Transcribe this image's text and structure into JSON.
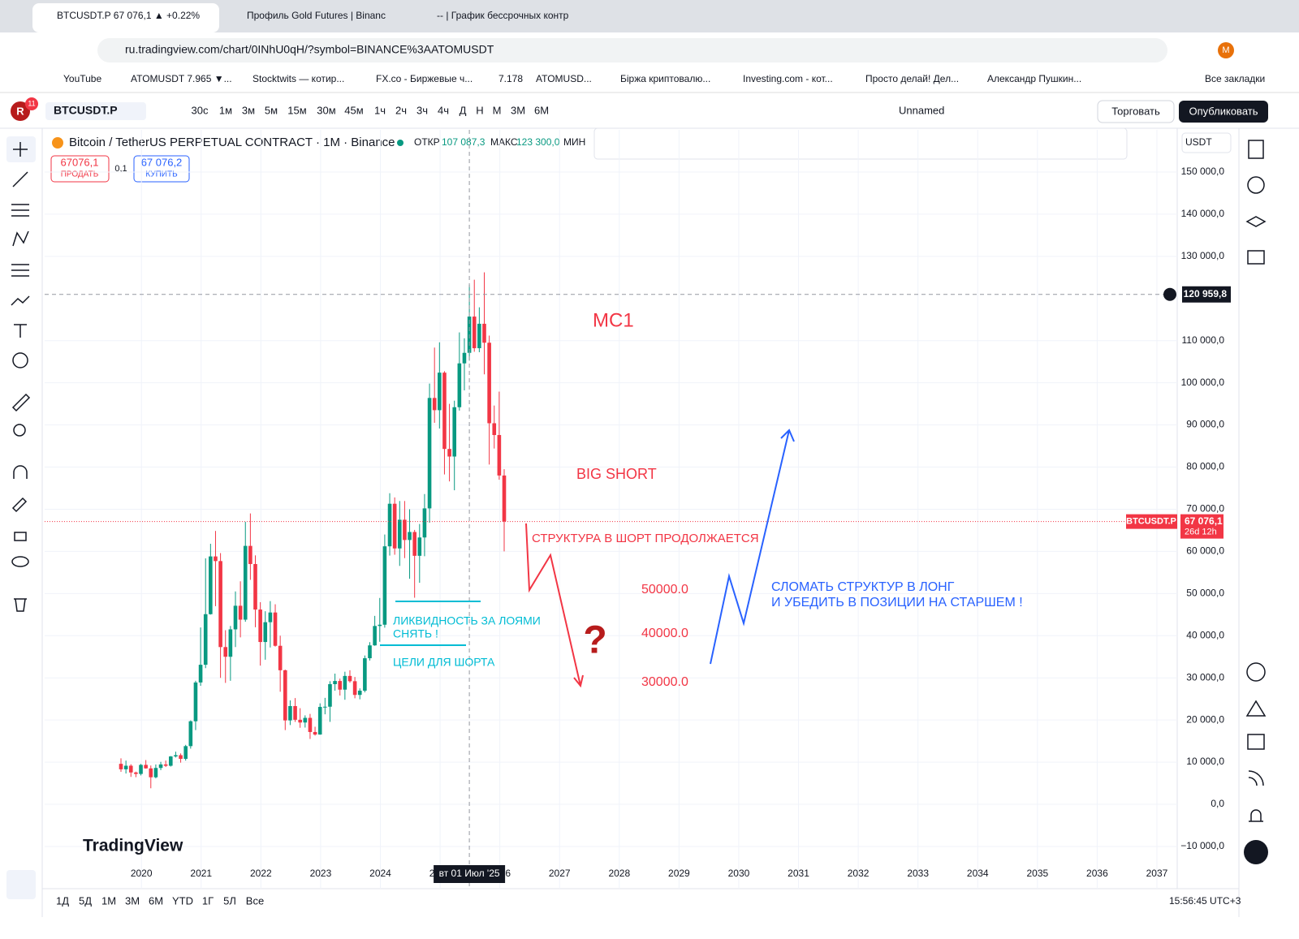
{
  "browser": {
    "tabs": [
      "BTCUSDT.P 67 076,1 ▲ +0.22% ",
      "Профиль Gold Futures | Binanc",
      "-- | График бессрочных контр"
    ],
    "address": "ru.tradingview.com/chart/0INhU0qH/?symbol=BINANCE%3AATOMUSDT",
    "bookmarks": [
      "YouTube",
      "ATOMUSDT 7.965 ▼...",
      "Stocktwits — котир...",
      "FX.co - Биржевые ч...",
      "7.178",
      "ATOMUSD...",
      "Біржа криптовалю...",
      "Investing.com - кот...",
      "Просто делай! Дел...",
      "Александр Пушкин...",
      "Все закладки"
    ],
    "profile": "M"
  },
  "toolbar": {
    "avatar": "R",
    "badge": "11",
    "symbol": "BTCUSDT.P",
    "intervals": [
      "30с",
      "1м",
      "3м",
      "5м",
      "15м",
      "30м",
      "45м",
      "1ч",
      "2ч",
      "3ч",
      "4ч",
      "Д",
      "Н",
      "М",
      "3М",
      "6М"
    ],
    "layout": "Unnamed",
    "trade": "Торговать",
    "publish": "Опубликовать"
  },
  "header": {
    "title": "Bitcoin / TetherUS PERPETUAL CONTRACT · 1M · Binance",
    "open_label": "ОТКР",
    "open": "107 087,3",
    "high_label": "МАКС",
    "high": "123 300,0",
    "low_label": "МИН",
    "sell_price": "67076,1",
    "sell": "ПРОДАТЬ",
    "spread": "0,1",
    "buy_price": "67 076,2",
    "buy": "КУПИТЬ",
    "currency": "USDT"
  },
  "chart_data": {
    "type": "candlestick",
    "candles": [
      [
        9600,
        10900,
        7700,
        8300
      ],
      [
        8300,
        10370,
        7300,
        9150
      ],
      [
        9150,
        9500,
        6500,
        7550
      ],
      [
        7550,
        7750,
        6430,
        7200
      ],
      [
        7200,
        9580,
        6850,
        9350
      ],
      [
        9350,
        10500,
        8450,
        8520
      ],
      [
        8520,
        9200,
        3800,
        6410
      ],
      [
        6410,
        9450,
        6150,
        8620
      ],
      [
        8620,
        10070,
        8100,
        9450
      ],
      [
        9450,
        10380,
        8850,
        9140
      ],
      [
        9140,
        11450,
        8950,
        11350
      ],
      [
        11350,
        12480,
        11100,
        11650
      ],
      [
        11650,
        12070,
        9880,
        10780
      ],
      [
        10780,
        14100,
        10360,
        13800
      ],
      [
        13800,
        19900,
        13200,
        19700
      ],
      [
        19700,
        29300,
        17600,
        28900
      ],
      [
        28900,
        41950,
        28100,
        33100
      ],
      [
        33100,
        58350,
        32300,
        45100
      ],
      [
        45100,
        61800,
        45000,
        58800
      ],
      [
        58800,
        64850,
        47000,
        57700
      ],
      [
        57700,
        59600,
        30000,
        37300
      ],
      [
        37300,
        41300,
        28800,
        35000
      ],
      [
        35000,
        42300,
        29300,
        41500
      ],
      [
        41500,
        50500,
        37300,
        47100
      ],
      [
        47100,
        52900,
        39600,
        43800
      ],
      [
        43800,
        67000,
        43300,
        61300
      ],
      [
        61300,
        69000,
        53250,
        57000
      ],
      [
        57000,
        59050,
        42000,
        46200
      ],
      [
        46200,
        47950,
        32900,
        38500
      ],
      [
        38500,
        45800,
        34300,
        43200
      ],
      [
        43200,
        48200,
        37200,
        45500
      ],
      [
        45500,
        47450,
        37400,
        37600
      ],
      [
        37600,
        40000,
        26700,
        31800
      ],
      [
        31800,
        31950,
        17600,
        19900
      ],
      [
        19900,
        24650,
        18800,
        23300
      ],
      [
        23300,
        25200,
        19550,
        20050
      ],
      [
        20050,
        22800,
        18150,
        19400
      ],
      [
        19400,
        21100,
        18200,
        20500
      ],
      [
        20500,
        21450,
        15500,
        17150
      ],
      [
        17150,
        18400,
        16300,
        16550
      ],
      [
        16550,
        23950,
        16500,
        23100
      ],
      [
        23100,
        25250,
        21350,
        23150
      ],
      [
        23150,
        29200,
        19550,
        28500
      ],
      [
        28500,
        31000,
        26950,
        29250
      ],
      [
        29250,
        29800,
        25800,
        27200
      ],
      [
        27200,
        31450,
        24800,
        30450
      ],
      [
        30450,
        31800,
        28850,
        29200
      ],
      [
        29200,
        30200,
        25150,
        25950
      ],
      [
        25950,
        27500,
        24900,
        26950
      ],
      [
        26950,
        35300,
        26550,
        34650
      ],
      [
        34650,
        38450,
        34100,
        37700
      ],
      [
        37700,
        44700,
        37600,
        42300
      ],
      [
        42300,
        48950,
        38550,
        42600
      ],
      [
        42600,
        64000,
        41900,
        61200
      ],
      [
        61200,
        73800,
        59000,
        71300
      ],
      [
        71300,
        72800,
        59200,
        60700
      ],
      [
        60700,
        71950,
        56550,
        67500
      ],
      [
        67500,
        71950,
        58400,
        62700
      ],
      [
        62700,
        70000,
        53500,
        64600
      ],
      [
        64600,
        65100,
        49000,
        58950
      ],
      [
        58950,
        66500,
        52550,
        63300
      ],
      [
        63300,
        73600,
        58850,
        70200
      ],
      [
        70200,
        99800,
        66800,
        96400
      ],
      [
        96400,
        108350,
        90500,
        93500
      ],
      [
        93500,
        109600,
        89150,
        102400
      ],
      [
        102400,
        102750,
        78250,
        84300
      ],
      [
        84300,
        95000,
        76600,
        82500
      ],
      [
        82500,
        95750,
        74500,
        94200
      ],
      [
        94200,
        111950,
        93400,
        104600
      ],
      [
        104600,
        110550,
        98200,
        107100
      ],
      [
        107100,
        123200,
        105250,
        115700
      ],
      [
        115700,
        124450,
        107350,
        108200
      ],
      [
        108200,
        117900,
        107250,
        114000
      ],
      [
        114000,
        126200,
        102000,
        109500
      ],
      [
        109500,
        111200,
        80600,
        90400
      ],
      [
        90400,
        94600,
        84400,
        87600
      ],
      [
        87600,
        97900,
        77000,
        78000
      ],
      [
        78000,
        79500,
        60000,
        67076.1
      ]
    ],
    "up_color": "#089981",
    "down_color": "#f23645",
    "xlim": [
      2018.38,
      2037.34
    ],
    "xticks": [
      2020,
      2021,
      2022,
      2023,
      2024,
      2025,
      2026,
      2027,
      2028,
      2029,
      2030,
      2031,
      2032,
      2033,
      2034,
      2035,
      2036,
      2037
    ],
    "ylim": [
      -13860,
      160000
    ],
    "yticks": [
      {
        "value": 150000,
        "label": "150 000,0"
      },
      {
        "value": 140000,
        "label": "140 000,0"
      },
      {
        "value": 130000,
        "label": "130 000,0"
      },
      {
        "value": 110000,
        "label": "110 000,0"
      },
      {
        "value": 100000,
        "label": "100 000,0"
      },
      {
        "value": 90000,
        "label": "90 000,0"
      },
      {
        "value": 80000,
        "label": "80 000,0"
      },
      {
        "value": 70000,
        "label": "70 000,0"
      },
      {
        "value": 60000,
        "label": "60 000,0"
      },
      {
        "value": 50000,
        "label": "50 000,0"
      },
      {
        "value": 40000,
        "label": "40 000,0"
      },
      {
        "value": 30000,
        "label": "30 000,0"
      },
      {
        "value": 20000,
        "label": "20 000,0"
      },
      {
        "value": 10000,
        "label": "10 000,0"
      },
      {
        "value": 0,
        "label": "0,0"
      },
      {
        "value": -10000,
        "label": "−10 000,0"
      }
    ],
    "grid": true,
    "crosshair": {
      "price": 120959.8,
      "price_label": "120 959,8",
      "date_label": "вт 01 Июл '25"
    },
    "last_price": {
      "symbol": "BTCUSDT.P",
      "value": 67076.1,
      "label": "67 076,1",
      "countdown": "26d 12h"
    },
    "annotations": {
      "mc1": "MC1",
      "big_short": "BIG SHORT",
      "structure": "СТРУКТУРА В ШОРТ ПРОДОЛЖАЕТСЯ",
      "level1": "50000.0",
      "level2": "40000.0",
      "level3": "30000.0",
      "question": "?",
      "long1": "СЛОМАТЬ СТРУКТУР В ЛОНГ",
      "long2": "И УБЕДИТЬ В ПОЗИЦИИ НА СТАРШЕМ !",
      "liq1": "ЛИКВИДНОСТЬ ЗА ЛОЯМИ",
      "liq2": "СНЯТЬ !",
      "targets": "ЦЕЛИ ДЛЯ ШОРТА"
    }
  },
  "footer": {
    "ranges": [
      "1Д",
      "5Д",
      "1М",
      "3М",
      "6М",
      "YTD",
      "1Г",
      "5Л",
      "Все"
    ],
    "time": "15:56:45 UTC+3",
    "logo": "TradingView"
  }
}
